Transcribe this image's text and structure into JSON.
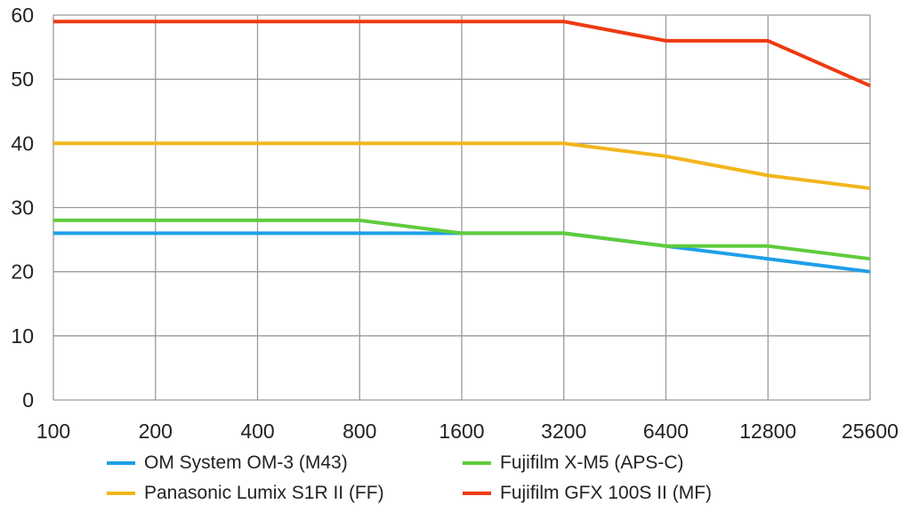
{
  "chart_data": {
    "type": "line",
    "title": "",
    "xlabel": "",
    "ylabel": "",
    "categories": [
      "100",
      "200",
      "400",
      "800",
      "1600",
      "3200",
      "6400",
      "12800",
      "25600"
    ],
    "ylim": [
      0,
      60
    ],
    "yticks": [
      "0",
      "10",
      "20",
      "30",
      "40",
      "50",
      "60"
    ],
    "grid": true,
    "series": [
      {
        "name": "OM System OM-3 (M43)",
        "color": "#1E9FE8",
        "values": [
          26,
          26,
          26,
          26,
          26,
          26,
          24,
          22,
          20
        ]
      },
      {
        "name": "Fujifilm X-M5 (APS-C)",
        "color": "#5FCC3C",
        "values": [
          28,
          28,
          28,
          28,
          26,
          26,
          24,
          24,
          22
        ]
      },
      {
        "name": "Panasonic Lumix S1R II (FF)",
        "color": "#F2B51C",
        "values": [
          40,
          40,
          40,
          40,
          40,
          40,
          38,
          35,
          33
        ]
      },
      {
        "name": "Fujifilm GFX 100S II (MF)",
        "color": "#EE3A12",
        "values": [
          59,
          59,
          59,
          59,
          59,
          59,
          56,
          56,
          49
        ]
      }
    ]
  }
}
